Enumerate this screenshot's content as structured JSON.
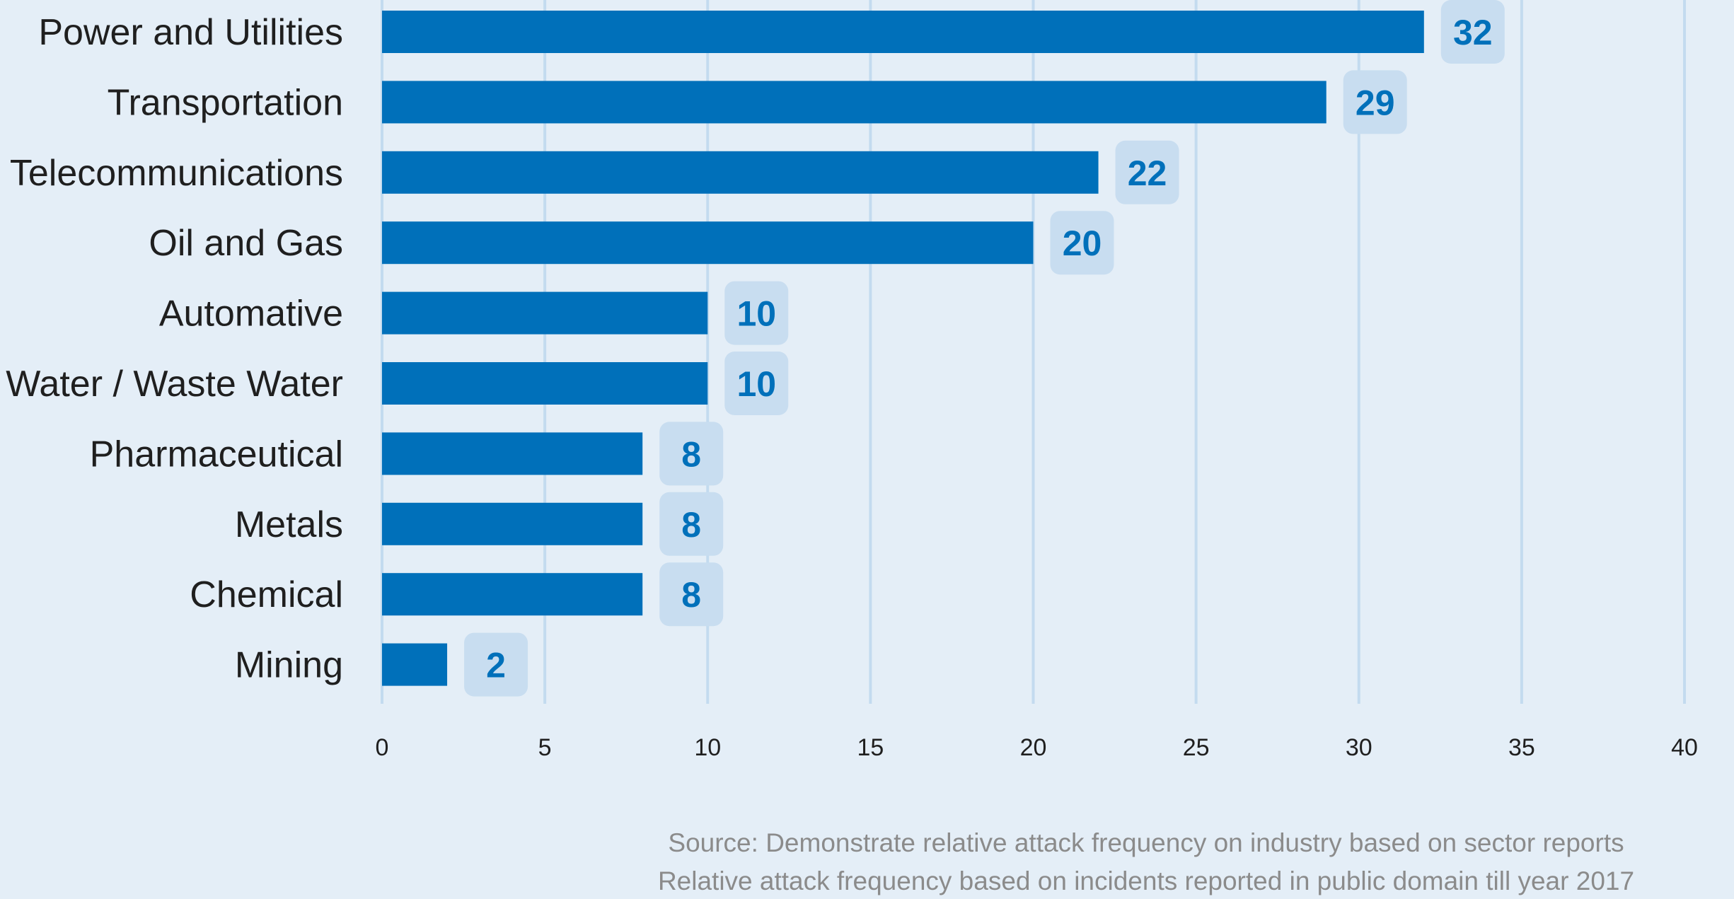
{
  "chart_data": {
    "type": "bar",
    "orientation": "horizontal",
    "categories": [
      "Power and Utilities",
      "Transportation",
      "Telecommunications",
      "Oil and Gas",
      "Automative",
      "Water /  Waste Water",
      "Pharmaceutical",
      "Metals",
      "Chemical",
      "Mining"
    ],
    "values": [
      32,
      29,
      22,
      20,
      10,
      10,
      8,
      8,
      8,
      2
    ],
    "xlim": [
      0,
      40
    ],
    "xticks": [
      "0",
      "5",
      "10",
      "15",
      "20",
      "25",
      "30",
      "35",
      "40"
    ],
    "grid": true,
    "legend": "none"
  },
  "source": {
    "line1": "Source: Demonstrate relative attack frequency on industry based on sector reports",
    "line2": "Relative attack frequency based on incidents reported in public domain till year 2017"
  },
  "colors": {
    "background": "#e4eef7",
    "bar": "#0070ba",
    "gridline": "#c3dbef",
    "value_badge": "#c8ddf0",
    "value_text": "#0070ba",
    "label_text": "#1f1f1f",
    "source_text": "#8b8b8b"
  }
}
